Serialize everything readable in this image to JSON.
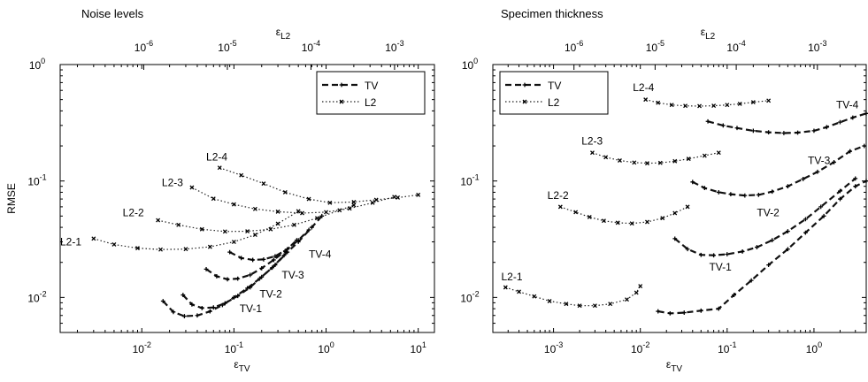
{
  "chart_data": [
    {
      "type": "line",
      "title": "Noise levels",
      "xlabel_main": "ε",
      "xlabel_sub": "TV",
      "ylabel": "RMSE",
      "top_xlabel_main": "ε",
      "top_xlabel_sub": "L2",
      "xscale": "log",
      "yscale": "log",
      "xlim": [
        0.0013,
        15
      ],
      "ylim": [
        0.005,
        1
      ],
      "top_xlim": [
        1e-07,
        0.003
      ],
      "x_ticks": [
        {
          "v": 0.01,
          "e": "-2"
        },
        {
          "v": 0.1,
          "e": "-1"
        },
        {
          "v": 1,
          "e": "0"
        },
        {
          "v": 10,
          "e": "1"
        }
      ],
      "y_ticks": [
        {
          "v": 0.01,
          "e": "-2"
        },
        {
          "v": 0.1,
          "e": "-1"
        },
        {
          "v": 1,
          "e": "0"
        }
      ],
      "top_x_ticks": [
        {
          "v": 1e-06,
          "e": "-6"
        },
        {
          "v": 1e-05,
          "e": "-5"
        },
        {
          "v": 0.0001,
          "e": "-4"
        },
        {
          "v": 0.001,
          "e": "-3"
        }
      ],
      "legend": {
        "placement": "top-right",
        "entries": [
          {
            "series": "TV",
            "label": "TV"
          },
          {
            "series": "L2",
            "label": "L2"
          }
        ]
      },
      "series": [
        {
          "name": "TV",
          "label": "TV-1",
          "kind": "TV",
          "label_at": [
            0.115,
            0.0075
          ],
          "x": [
            0.017,
            0.022,
            0.029,
            0.04,
            0.055,
            0.075,
            0.1,
            0.14,
            0.19,
            0.26,
            0.35,
            0.5,
            0.7,
            0.9
          ],
          "y": [
            0.0093,
            0.0075,
            0.0069,
            0.007,
            0.0076,
            0.0086,
            0.01,
            0.012,
            0.0145,
            0.018,
            0.023,
            0.03,
            0.04,
            0.05
          ]
        },
        {
          "name": "TV",
          "label": "TV-2",
          "kind": "TV",
          "label_at": [
            0.19,
            0.01
          ],
          "x": [
            0.028,
            0.035,
            0.045,
            0.06,
            0.08,
            0.11,
            0.15,
            0.2,
            0.28,
            0.38
          ],
          "y": [
            0.0105,
            0.0087,
            0.0081,
            0.0082,
            0.0089,
            0.0103,
            0.0122,
            0.015,
            0.019,
            0.0245
          ]
        },
        {
          "name": "TV",
          "label": "TV-3",
          "kind": "TV",
          "label_at": [
            0.33,
            0.0145
          ],
          "x": [
            0.05,
            0.065,
            0.085,
            0.11,
            0.15,
            0.2,
            0.27,
            0.36,
            0.48
          ],
          "y": [
            0.0175,
            0.0152,
            0.0143,
            0.0145,
            0.0156,
            0.0178,
            0.021,
            0.025,
            0.031
          ]
        },
        {
          "name": "TV",
          "label": "TV-4",
          "kind": "TV",
          "label_at": [
            0.65,
            0.022
          ],
          "x": [
            0.09,
            0.12,
            0.16,
            0.21,
            0.28,
            0.38,
            0.5,
            0.65
          ],
          "y": [
            0.0245,
            0.0218,
            0.021,
            0.0212,
            0.0226,
            0.026,
            0.031,
            0.038
          ]
        },
        {
          "name": "L2",
          "label": "L2-1",
          "kind": "L2",
          "label_at": [
            0.0013,
            0.028
          ],
          "x": [
            0.003,
            0.005,
            0.009,
            0.016,
            0.03,
            0.055,
            0.1,
            0.17,
            0.3,
            0.5
          ],
          "y": [
            0.032,
            0.0285,
            0.0265,
            0.0258,
            0.026,
            0.0272,
            0.03,
            0.0345,
            0.043,
            0.055
          ]
        },
        {
          "name": "L2",
          "label": "L2-2",
          "kind": "L2",
          "label_at": [
            0.0062,
            0.05
          ],
          "x": [
            0.015,
            0.025,
            0.045,
            0.08,
            0.14,
            0.25,
            0.45,
            0.8,
            1.4,
            2.0
          ],
          "y": [
            0.046,
            0.042,
            0.0385,
            0.0368,
            0.037,
            0.0385,
            0.042,
            0.048,
            0.056,
            0.062
          ]
        },
        {
          "name": "L2",
          "label": "L2-3",
          "kind": "L2",
          "label_at": [
            0.0165,
            0.09
          ],
          "x": [
            0.035,
            0.06,
            0.1,
            0.17,
            0.3,
            0.55,
            1.0,
            1.8,
            3.2,
            5.5
          ],
          "y": [
            0.088,
            0.0705,
            0.063,
            0.0575,
            0.0545,
            0.053,
            0.054,
            0.058,
            0.065,
            0.073
          ]
        },
        {
          "name": "L2",
          "label": "L2-4",
          "kind": "L2",
          "label_at": [
            0.05,
            0.15
          ],
          "x": [
            0.07,
            0.12,
            0.21,
            0.36,
            0.65,
            1.1,
            2.0,
            3.5,
            6.0,
            10.0
          ],
          "y": [
            0.13,
            0.112,
            0.095,
            0.08,
            0.07,
            0.065,
            0.066,
            0.069,
            0.072,
            0.076
          ]
        }
      ]
    },
    {
      "type": "line",
      "title": "Specimen thickness",
      "xlabel_main": "ε",
      "xlabel_sub": "TV",
      "ylabel": "",
      "top_xlabel_main": "ε",
      "top_xlabel_sub": "L2",
      "xscale": "log",
      "yscale": "log",
      "xlim": [
        0.0002,
        4
      ],
      "ylim": [
        0.005,
        1
      ],
      "top_xlim": [
        1e-07,
        0.004
      ],
      "x_ticks": [
        {
          "v": 0.001,
          "e": "-3"
        },
        {
          "v": 0.01,
          "e": "-2"
        },
        {
          "v": 0.1,
          "e": "-1"
        },
        {
          "v": 1,
          "e": "0"
        }
      ],
      "y_ticks": [
        {
          "v": 0.01,
          "e": "-2"
        },
        {
          "v": 0.1,
          "e": "-1"
        },
        {
          "v": 1,
          "e": "0"
        }
      ],
      "top_x_ticks": [
        {
          "v": 1e-06,
          "e": "-6"
        },
        {
          "v": 1e-05,
          "e": "-5"
        },
        {
          "v": 0.0001,
          "e": "-4"
        },
        {
          "v": 0.001,
          "e": "-3"
        }
      ],
      "legend": {
        "placement": "top-left",
        "entries": [
          {
            "series": "TV",
            "label": "TV"
          },
          {
            "series": "L2",
            "label": "L2"
          }
        ]
      },
      "series": [
        {
          "name": "TV",
          "label": "TV-1",
          "kind": "TV",
          "label_at": [
            0.062,
            0.017
          ],
          "x": [
            0.016,
            0.022,
            0.032,
            0.05,
            0.08,
            0.12,
            0.19,
            0.3,
            0.5,
            0.8,
            1.3,
            2.0,
            3.0,
            4.0
          ],
          "y": [
            0.0076,
            0.0073,
            0.0074,
            0.0077,
            0.008,
            0.0105,
            0.014,
            0.019,
            0.026,
            0.036,
            0.05,
            0.07,
            0.09,
            0.1
          ]
        },
        {
          "name": "TV",
          "label": "TV-2",
          "kind": "TV",
          "label_at": [
            0.22,
            0.05
          ],
          "x": [
            0.025,
            0.035,
            0.05,
            0.07,
            0.1,
            0.15,
            0.22,
            0.33,
            0.5,
            0.8,
            1.2,
            2.0,
            3.0
          ],
          "y": [
            0.032,
            0.026,
            0.0232,
            0.023,
            0.0235,
            0.0248,
            0.027,
            0.031,
            0.037,
            0.047,
            0.06,
            0.082,
            0.105
          ]
        },
        {
          "name": "TV",
          "label": "TV-3",
          "kind": "TV",
          "label_at": [
            0.85,
            0.14
          ],
          "x": [
            0.04,
            0.055,
            0.08,
            0.11,
            0.16,
            0.23,
            0.33,
            0.5,
            0.75,
            1.1,
            1.7,
            2.6,
            3.8
          ],
          "y": [
            0.098,
            0.087,
            0.08,
            0.077,
            0.075,
            0.076,
            0.081,
            0.09,
            0.104,
            0.12,
            0.145,
            0.18,
            0.2
          ]
        },
        {
          "name": "TV",
          "label": "TV-4",
          "kind": "TV",
          "label_at": [
            1.8,
            0.42
          ],
          "x": [
            0.06,
            0.09,
            0.13,
            0.2,
            0.3,
            0.45,
            0.65,
            1.0,
            1.4,
            2.0,
            2.8,
            4.0
          ],
          "y": [
            0.325,
            0.3,
            0.285,
            0.27,
            0.262,
            0.258,
            0.26,
            0.27,
            0.29,
            0.32,
            0.35,
            0.38
          ]
        },
        {
          "name": "L2",
          "label": "L2-1",
          "kind": "L2",
          "label_at": [
            0.00025,
            0.014
          ],
          "x": [
            0.00028,
            0.0004,
            0.0006,
            0.0009,
            0.0014,
            0.002,
            0.003,
            0.0045,
            0.007,
            0.009,
            0.01
          ],
          "y": [
            0.0122,
            0.0112,
            0.0102,
            0.0093,
            0.0088,
            0.0085,
            0.0085,
            0.0088,
            0.0096,
            0.011,
            0.0125
          ]
        },
        {
          "name": "L2",
          "label": "L2-2",
          "kind": "L2",
          "label_at": [
            0.00085,
            0.07
          ],
          "x": [
            0.0012,
            0.0018,
            0.0026,
            0.0038,
            0.0055,
            0.008,
            0.012,
            0.018,
            0.025,
            0.035
          ],
          "y": [
            0.06,
            0.054,
            0.049,
            0.0455,
            0.0438,
            0.0432,
            0.0445,
            0.048,
            0.053,
            0.06
          ]
        },
        {
          "name": "L2",
          "label": "L2-3",
          "kind": "L2",
          "label_at": [
            0.0021,
            0.205
          ],
          "x": [
            0.0028,
            0.004,
            0.0058,
            0.0085,
            0.012,
            0.017,
            0.025,
            0.036,
            0.055,
            0.08
          ],
          "y": [
            0.175,
            0.16,
            0.15,
            0.144,
            0.142,
            0.143,
            0.148,
            0.155,
            0.165,
            0.175
          ]
        },
        {
          "name": "L2",
          "label": "L2-4",
          "kind": "L2",
          "label_at": [
            0.0082,
            0.59
          ],
          "x": [
            0.0115,
            0.016,
            0.023,
            0.033,
            0.048,
            0.07,
            0.1,
            0.14,
            0.2,
            0.3
          ],
          "y": [
            0.5,
            0.47,
            0.45,
            0.442,
            0.44,
            0.443,
            0.45,
            0.46,
            0.475,
            0.49
          ]
        }
      ]
    }
  ]
}
